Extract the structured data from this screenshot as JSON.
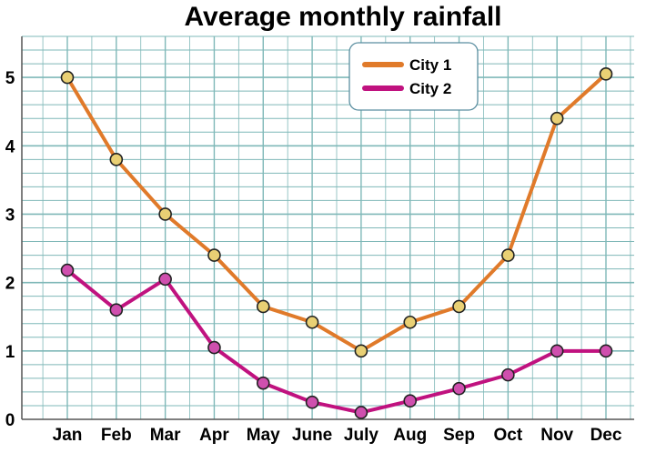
{
  "chart_data": {
    "type": "line",
    "title": "Average monthly rainfall",
    "xlabel": "",
    "ylabel": "",
    "categories": [
      "Jan",
      "Feb",
      "Mar",
      "Apr",
      "May",
      "June",
      "July",
      "Aug",
      "Sep",
      "Oct",
      "Nov",
      "Dec"
    ],
    "series": [
      {
        "name": "City 1",
        "color": "#e07a2a",
        "marker_color": "#e9d074",
        "values": [
          5.0,
          3.8,
          3.0,
          2.4,
          1.65,
          1.42,
          1.0,
          1.42,
          1.65,
          2.4,
          4.4,
          5.05
        ]
      },
      {
        "name": "City 2",
        "color": "#c0127f",
        "marker_color": "#cf4fae",
        "values": [
          2.18,
          1.6,
          2.05,
          1.05,
          0.53,
          0.25,
          0.1,
          0.27,
          0.45,
          0.65,
          1.0,
          1.0
        ]
      }
    ],
    "ylim": [
      0,
      5.6
    ],
    "yticks": [
      "0",
      "1",
      "2",
      "3",
      "4",
      "5"
    ],
    "grid": true,
    "grid_color": "#7fb8b8",
    "legend_position": "top-center"
  }
}
